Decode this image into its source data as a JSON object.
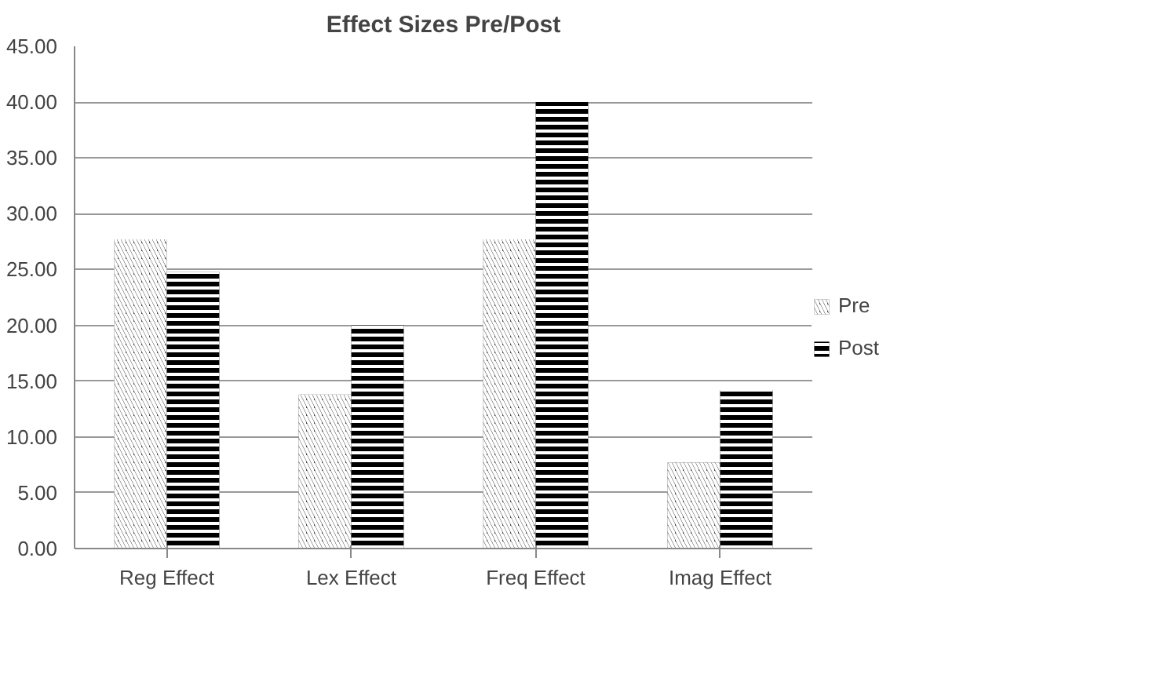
{
  "chart_data": {
    "type": "bar",
    "title": "Effect Sizes Pre/Post",
    "categories": [
      "Reg Effect",
      "Lex Effect",
      "Freq Effect",
      "Imag Effect"
    ],
    "series": [
      {
        "name": "Pre",
        "color": "#404040",
        "values": [
          27.7,
          13.8,
          27.7,
          7.7
        ]
      },
      {
        "name": "Post",
        "color": "#000000",
        "values": [
          24.8,
          20.0,
          40.0,
          14.2
        ]
      }
    ],
    "ylim": [
      0,
      45
    ],
    "yticks": [
      {
        "value": 0,
        "label": "0.00"
      },
      {
        "value": 5,
        "label": "5.00"
      },
      {
        "value": 10,
        "label": "10.00"
      },
      {
        "value": 15,
        "label": "15.00"
      },
      {
        "value": 20,
        "label": "20.00"
      },
      {
        "value": 25,
        "label": "25.00"
      },
      {
        "value": 30,
        "label": "30.00"
      },
      {
        "value": 35,
        "label": "35.00"
      },
      {
        "value": 40,
        "label": "40.00"
      },
      {
        "value": 45,
        "label": "45.00"
      }
    ],
    "grid": "y",
    "legend": "right"
  }
}
